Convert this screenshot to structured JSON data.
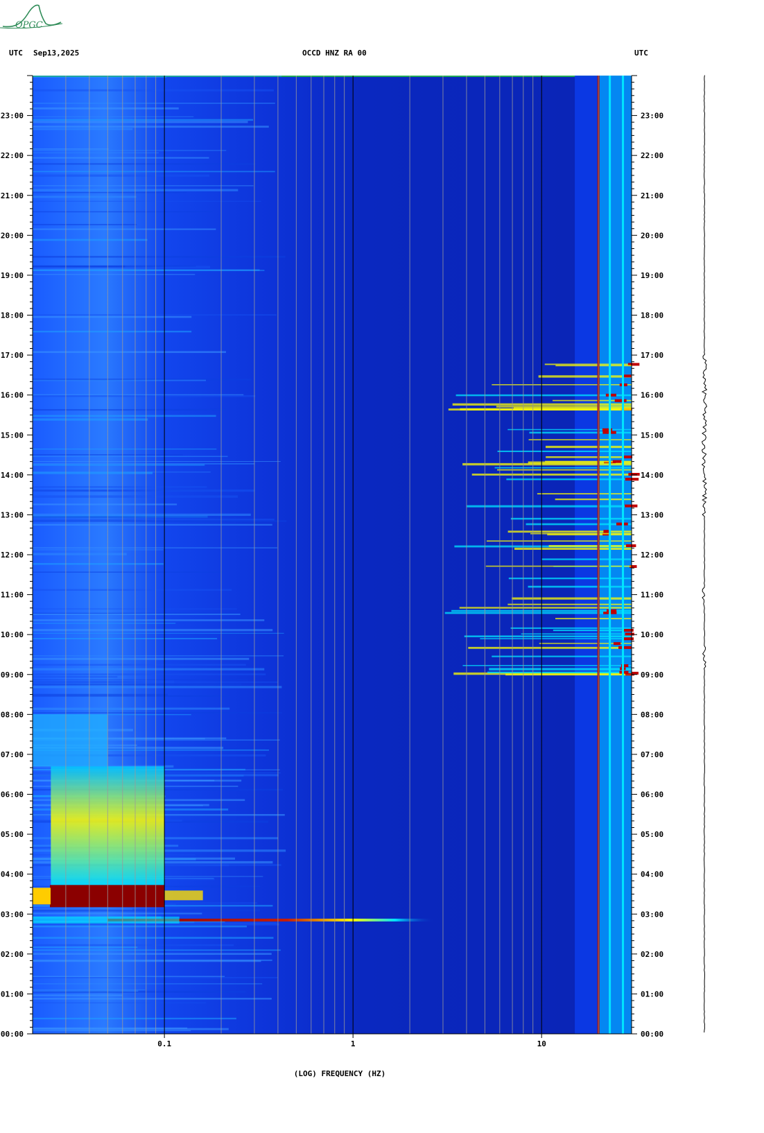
{
  "header": {
    "tz_left": "UTC",
    "date": "Sep13,2025",
    "station": "OCCD HNZ RA 00",
    "tz_right": "UTC"
  },
  "logo": {
    "text": "OPGC",
    "color": "#2e8b57"
  },
  "colors": {
    "background": "#0a1fb0",
    "low": "#0033e6",
    "mid": "#00e5ff",
    "high": "#ffff00",
    "peak": "#8b0000"
  },
  "chart_data": {
    "type": "heatmap",
    "title": "",
    "xlabel": "(LOG) FREQUENCY (HZ)",
    "ylabel": "",
    "x_scale": "log",
    "xlim": [
      0.02,
      30
    ],
    "ylim": [
      "00:00",
      "24:00"
    ],
    "x_ticks": [
      {
        "value": 0.1,
        "label": "0.1"
      },
      {
        "value": 1,
        "label": "1"
      },
      {
        "value": 10,
        "label": "10"
      }
    ],
    "y_ticks": [
      "00:00",
      "01:00",
      "02:00",
      "03:00",
      "04:00",
      "05:00",
      "06:00",
      "07:00",
      "08:00",
      "09:00",
      "10:00",
      "11:00",
      "12:00",
      "13:00",
      "14:00",
      "15:00",
      "16:00",
      "17:00",
      "18:00",
      "19:00",
      "20:00",
      "21:00",
      "22:00",
      "23:00"
    ],
    "events": [
      {
        "name": "",
        "time_hours": 2.85,
        "f_min": 0.05,
        "f_max": 2.7,
        "intensity": 1.0
      },
      {
        "name": "",
        "time_hours": 3.45,
        "f_min": 0.02,
        "f_max": 0.1,
        "intensity": 1.0
      }
    ],
    "persistent_lines_hz": [
      20,
      23,
      27
    ]
  }
}
